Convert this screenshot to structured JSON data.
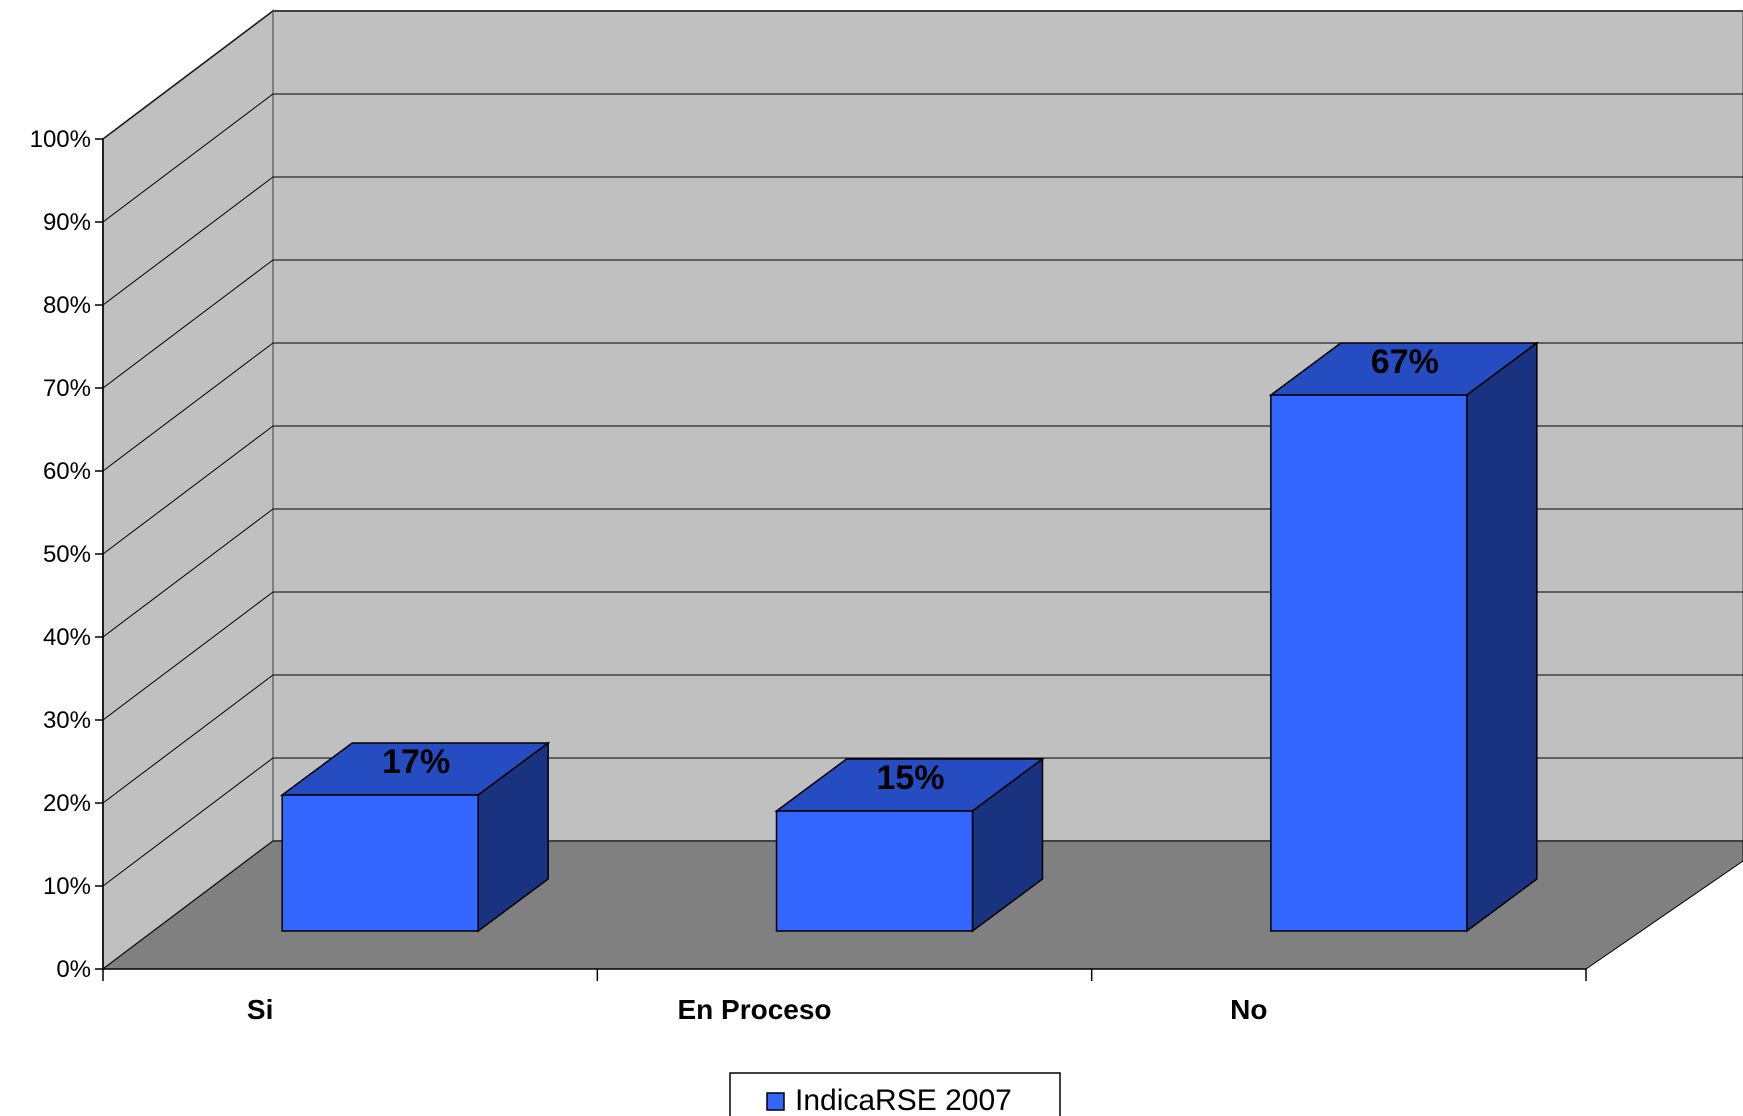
{
  "chart_data": {
    "type": "bar",
    "style": "3d-column",
    "categories": [
      "Si",
      "En Proceso",
      "No"
    ],
    "series": [
      {
        "name": "IndicaRSE 2007",
        "values": [
          17,
          15,
          67
        ],
        "color": "#3366ff"
      }
    ],
    "data_labels": [
      "17%",
      "15%",
      "67%"
    ],
    "y_ticks": [
      "0%",
      "10%",
      "20%",
      "30%",
      "40%",
      "50%",
      "60%",
      "70%",
      "80%",
      "90%",
      "100%"
    ],
    "ylim": [
      0,
      100
    ],
    "grid": true,
    "legend_position": "bottom",
    "colors": {
      "wall": "#c0c0c0",
      "floor": "#808080",
      "bar_front": "#3366ff",
      "bar_top": "#254cc0",
      "bar_side": "#1a3380"
    }
  }
}
